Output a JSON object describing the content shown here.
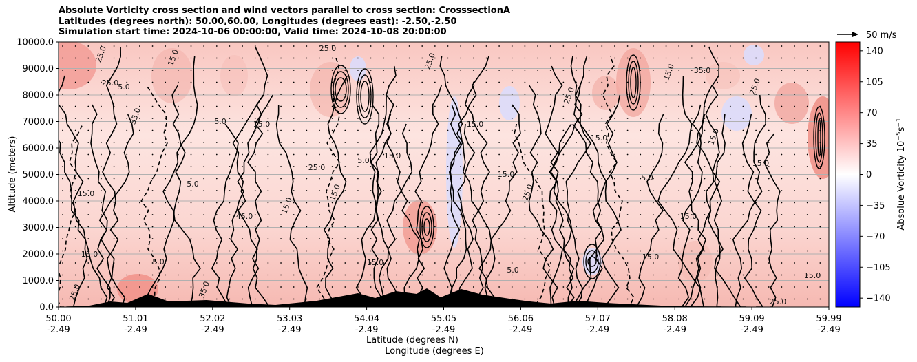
{
  "title_lines": [
    "Absolute Vorticity cross section and wind vectors parallel to cross section: CrosssectionA",
    "Latitudes (degrees north): 50.00,60.00, Longitudes (degrees east): -2.50,-2.50",
    "Simulation start time: 2024-10-06 00:00:00, Valid time: 2024-10-08 20:00:00"
  ],
  "chart_data": {
    "type": "heatmap",
    "title": "Absolute Vorticity cross section and wind vectors parallel to cross section: CrosssectionA",
    "xlabel": "Latitude (degrees N)",
    "xlabel2": "Longitude (degrees E)",
    "ylabel": "Altitude (meters)",
    "x_ticks_lat": [
      "50.00",
      "51.01",
      "52.02",
      "53.03",
      "54.04",
      "55.05",
      "56.06",
      "57.07",
      "58.08",
      "59.09",
      "59.99"
    ],
    "x_ticks_lon": [
      "-2.49",
      "-2.49",
      "-2.49",
      "-2.49",
      "-2.49",
      "-2.49",
      "-2.49",
      "-2.49",
      "-2.49",
      "-2.49",
      "-2.49"
    ],
    "y_ticks": [
      "0.0",
      "1000.0",
      "2000.0",
      "3000.0",
      "4000.0",
      "5000.0",
      "6000.0",
      "7000.0",
      "8000.0",
      "9000.0",
      "10000.0"
    ],
    "ylim": [
      0,
      10000
    ],
    "xlim": [
      50.0,
      59.99
    ],
    "grid": "horizontal",
    "colorbar": {
      "label": "Absolue Vorticity 10$^{-5}$s$^{-1}$",
      "label_text": "Absolue Vorticity 10",
      "label_exp": "−5",
      "label_unit": "s",
      "label_unit_exp": "−1",
      "range": [
        -150,
        150
      ],
      "ticks": [
        "140",
        "105",
        "70",
        "35",
        "0",
        "−35",
        "−70",
        "−105",
        "−140"
      ],
      "tick_values": [
        140,
        105,
        70,
        35,
        0,
        -35,
        -70,
        -105,
        -140
      ],
      "colormap": "bwr",
      "low_color": "#0000ff",
      "mid_color": "#ffffff",
      "high_color": "#ff0000"
    },
    "quiver_key": "50 m/s",
    "contour_labels": [
      "25.0",
      "15.0",
      "5.0",
      "35.0",
      "45.0",
      "25.0",
      "15.0",
      "5.0",
      "15.0",
      "25.0",
      "15.0",
      "5.0",
      "25.0",
      "15.0",
      "5.0",
      "15.0",
      "35.0",
      "15.0",
      "25.0",
      "15.0",
      "5.0",
      "15.0",
      "25.0",
      "15.0",
      "25.0",
      "15.0",
      "5.0",
      "15.0",
      "25.0",
      "15.0",
      "35.0",
      "15.0",
      "25.0",
      "15.0",
      "5.0",
      "15.0",
      "25.0",
      "15.0"
    ]
  }
}
